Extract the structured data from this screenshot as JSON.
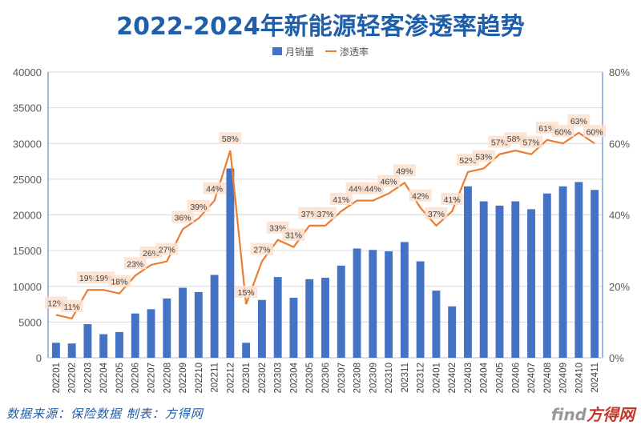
{
  "chart_data": {
    "type": "bar+line",
    "title": "2022-2024年新能源轻客渗透率趋势",
    "legend_position": "top",
    "grid": true,
    "categories": [
      "202201",
      "202202",
      "202203",
      "202204",
      "202205",
      "202206",
      "202207",
      "202208",
      "202209",
      "202210",
      "202211",
      "202212",
      "202301",
      "202302",
      "202303",
      "202304",
      "202305",
      "202306",
      "202307",
      "202308",
      "202309",
      "202310",
      "202311",
      "202312",
      "202401",
      "202402",
      "202403",
      "202404",
      "202405",
      "202406",
      "202407",
      "202408",
      "202409",
      "202410",
      "202411"
    ],
    "series": [
      {
        "name": "月销量",
        "type": "bar",
        "axis": "left",
        "color": "#4472c4",
        "values": [
          2100,
          2000,
          4700,
          3300,
          3600,
          6200,
          6800,
          8300,
          9800,
          9200,
          11600,
          26500,
          2100,
          8100,
          11300,
          8400,
          11000,
          11200,
          12900,
          15300,
          15100,
          14900,
          16200,
          13500,
          9400,
          7200,
          24000,
          21900,
          21300,
          21900,
          20800,
          23000,
          24000,
          24600,
          23500
        ]
      },
      {
        "name": "渗透率",
        "type": "line",
        "axis": "right",
        "color": "#ed7d31",
        "values": [
          12,
          11,
          19,
          19,
          18,
          23,
          26,
          27,
          36,
          39,
          44,
          58,
          15,
          27,
          33,
          31,
          37,
          37,
          41,
          44,
          44,
          46,
          49,
          42,
          37,
          41,
          52,
          53,
          57,
          58,
          57,
          61,
          60,
          63,
          60
        ],
        "labels": [
          "12%",
          "11%",
          "19%",
          "19%",
          "18%",
          "23%",
          "26%",
          "27%",
          "36%",
          "39%",
          "44%",
          "58%",
          "15%",
          "27%",
          "33%",
          "31%",
          "37%",
          "37%",
          "41%",
          "44%",
          "44%",
          "46%",
          "49%",
          "42%",
          "37%",
          "41%",
          "52%",
          "53%",
          "57%",
          "58%",
          "57%",
          "61%",
          "60%",
          "63%",
          "60%"
        ]
      }
    ],
    "y_left": {
      "range": [
        0,
        40000
      ],
      "ticks": [
        "0",
        "5000",
        "10000",
        "15000",
        "20000",
        "25000",
        "30000",
        "35000",
        "40000"
      ]
    },
    "y_right": {
      "range": [
        0,
        80
      ],
      "ticks": [
        "0%",
        "20%",
        "40%",
        "60%",
        "80%"
      ]
    }
  },
  "footer": {
    "source": "数据来源：保险数据 制表：方得网"
  },
  "logo": {
    "text": "find方得网"
  }
}
